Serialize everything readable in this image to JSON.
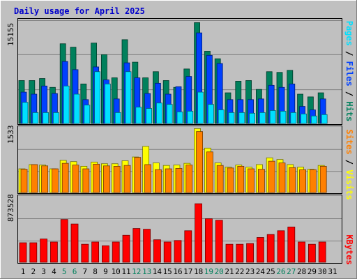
{
  "colors": {
    "background": "#c0c0c0",
    "hits": "#00805c",
    "files": "#0040ff",
    "pages": "#00e0ff",
    "visits": "#ffff00",
    "sites": "#ff8000",
    "kbytes": "#ff0000",
    "weekend": "#00805c",
    "weekday": "#000000",
    "title": "#0000cc"
  },
  "chart_data": [
    {
      "type": "bar",
      "title": "Daily usage for April 2025",
      "ymax_label": "15155",
      "ylim": [
        0,
        15155
      ],
      "legend": [
        {
          "text": "Pages",
          "color": "#00e0ff"
        },
        {
          "text": " / ",
          "color": "#000000"
        },
        {
          "text": "Files",
          "color": "#0040ff"
        },
        {
          "text": " / ",
          "color": "#000000"
        },
        {
          "text": "Hits",
          "color": "#00805c"
        }
      ],
      "categories": [
        "1",
        "2",
        "3",
        "4",
        "5",
        "6",
        "7",
        "8",
        "9",
        "10",
        "11",
        "12",
        "13",
        "14",
        "15",
        "16",
        "17",
        "18",
        "19",
        "20",
        "21",
        "22",
        "23",
        "24",
        "25",
        "26",
        "27",
        "28",
        "29",
        "30",
        "31"
      ],
      "series": [
        {
          "name": "Hits",
          "color": "#00805c",
          "values": [
            6300,
            6300,
            6600,
            5300,
            11700,
            11200,
            5800,
            11800,
            10100,
            6700,
            12300,
            9000,
            6700,
            7600,
            6300,
            5300,
            8000,
            14800,
            10600,
            9500,
            4500,
            6200,
            6300,
            5000,
            7600,
            7500,
            7800,
            4300,
            3900,
            4500,
            0
          ]
        },
        {
          "name": "Files",
          "color": "#0040ff",
          "values": [
            4600,
            4300,
            5500,
            4400,
            9100,
            7900,
            3500,
            8300,
            6400,
            3600,
            8900,
            6700,
            4400,
            5900,
            4300,
            5400,
            6900,
            13300,
            10000,
            8800,
            3500,
            3500,
            3500,
            3600,
            5600,
            5300,
            5800,
            2500,
            2000,
            3600,
            0
          ]
        },
        {
          "name": "Pages",
          "color": "#00e0ff",
          "values": [
            3100,
            1600,
            1600,
            1600,
            5500,
            4300,
            2700,
            7600,
            5800,
            1600,
            7600,
            2400,
            2200,
            3000,
            2800,
            1700,
            1800,
            4600,
            2800,
            2000,
            1600,
            1600,
            1500,
            1600,
            1900,
            1800,
            1600,
            1400,
            1100,
            1300,
            0
          ]
        }
      ]
    },
    {
      "type": "bar",
      "ymax_label": "1533",
      "ylim": [
        0,
        1533
      ],
      "legend": [
        {
          "text": "Sites",
          "color": "#ff8000"
        },
        {
          "text": " / ",
          "color": "#000000"
        },
        {
          "text": "Visits",
          "color": "#ffff00"
        }
      ],
      "categories": [
        "1",
        "2",
        "3",
        "4",
        "5",
        "6",
        "7",
        "8",
        "9",
        "10",
        "11",
        "12",
        "13",
        "14",
        "15",
        "16",
        "17",
        "18",
        "19",
        "20",
        "21",
        "22",
        "23",
        "24",
        "25",
        "26",
        "27",
        "28",
        "29",
        "30",
        "31"
      ],
      "series": [
        {
          "name": "Visits",
          "color": "#ffff00",
          "values": [
            560,
            660,
            650,
            560,
            760,
            730,
            620,
            720,
            680,
            680,
            750,
            840,
            1090,
            700,
            640,
            650,
            690,
            1510,
            1050,
            700,
            600,
            650,
            600,
            660,
            820,
            780,
            660,
            600,
            550,
            640,
            0
          ]
        },
        {
          "name": "Sites",
          "color": "#ff8000",
          "values": [
            550,
            660,
            630,
            560,
            690,
            650,
            560,
            670,
            630,
            620,
            640,
            830,
            660,
            540,
            560,
            570,
            650,
            1440,
            960,
            640,
            580,
            620,
            560,
            550,
            740,
            700,
            590,
            540,
            540,
            620,
            0
          ]
        }
      ]
    },
    {
      "type": "bar",
      "ymax_label": "873528",
      "ylim": [
        0,
        873528
      ],
      "legend": [
        {
          "text": "KBytes",
          "color": "#ff0000"
        }
      ],
      "categories": [
        "1",
        "2",
        "3",
        "4",
        "5",
        "6",
        "7",
        "8",
        "9",
        "10",
        "11",
        "12",
        "13",
        "14",
        "15",
        "16",
        "17",
        "18",
        "19",
        "20",
        "21",
        "22",
        "23",
        "24",
        "25",
        "26",
        "27",
        "28",
        "29",
        "30",
        "31"
      ],
      "series": [
        {
          "name": "KBytes",
          "color": "#ff0000",
          "values": [
            260000,
            260000,
            310000,
            270000,
            570000,
            510000,
            240000,
            270000,
            220000,
            270000,
            360000,
            450000,
            440000,
            300000,
            270000,
            290000,
            420000,
            780000,
            580000,
            560000,
            240000,
            240000,
            250000,
            330000,
            370000,
            420000,
            470000,
            270000,
            240000,
            270000,
            0
          ]
        }
      ]
    }
  ],
  "x_axis": {
    "labels": [
      "1",
      "2",
      "3",
      "4",
      "5",
      "6",
      "7",
      "8",
      "9",
      "10",
      "11",
      "12",
      "13",
      "14",
      "15",
      "16",
      "17",
      "18",
      "19",
      "20",
      "21",
      "22",
      "23",
      "24",
      "25",
      "26",
      "27",
      "28",
      "29",
      "30",
      "31"
    ],
    "weekend_days": [
      "5",
      "6",
      "12",
      "13",
      "19",
      "20",
      "26",
      "27"
    ]
  }
}
